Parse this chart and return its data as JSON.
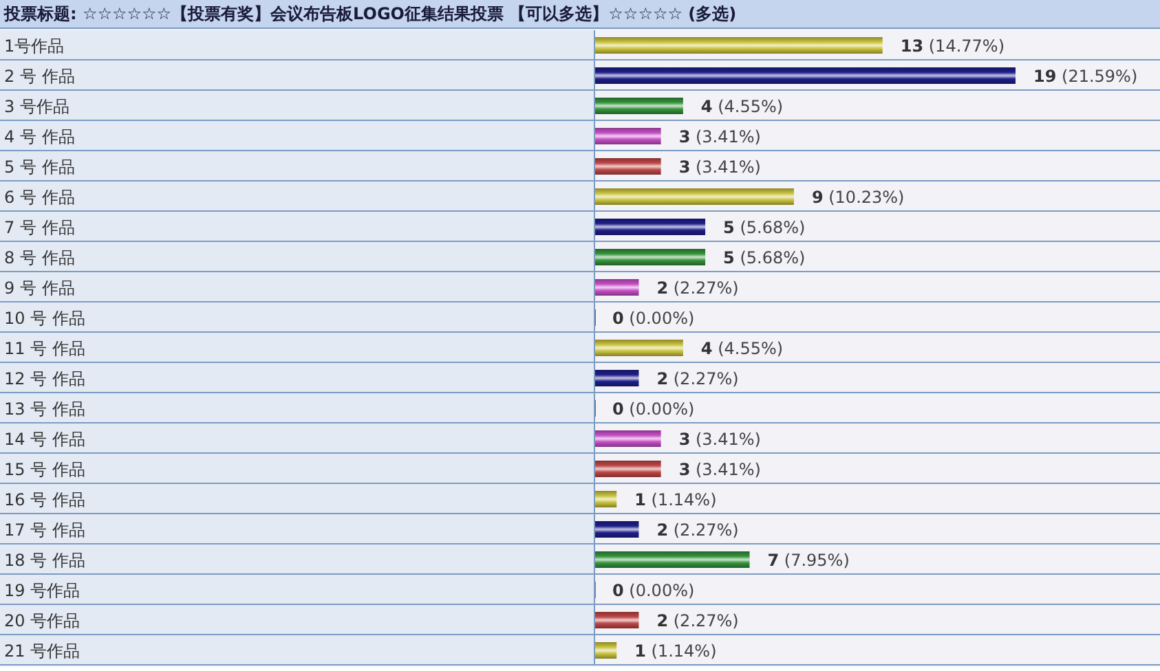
{
  "chart_data": {
    "type": "bar",
    "orientation": "horizontal",
    "title": "投票标题: ☆☆☆☆☆☆【投票有奖】会议布告板LOGO征集结果投票 【可以多选】☆☆☆☆☆ (多选)",
    "categories": [
      "1号作品",
      "2 号 作品",
      "3 号作品",
      "4 号 作品",
      "5 号 作品",
      "6 号 作品",
      "7 号 作品",
      "8 号 作品",
      "9 号 作品",
      "10 号 作品",
      "11 号 作品",
      "12 号 作品",
      "13 号 作品",
      "14 号 作品",
      "15 号 作品",
      "16 号 作品",
      "17 号 作品",
      "18 号 作品",
      "19 号作品",
      "20 号作品",
      "21 号作品"
    ],
    "values": [
      13,
      19,
      4,
      3,
      3,
      9,
      5,
      5,
      2,
      0,
      4,
      2,
      0,
      3,
      3,
      1,
      2,
      7,
      0,
      2,
      1
    ],
    "colors": [
      "#c9c23c",
      "#1e1e8a",
      "#34923a",
      "#c64ec6",
      "#bf4646",
      "#c9c23c",
      "#1e1e8a",
      "#34923a",
      "#c64ec6",
      "#bf4646",
      "#c9c23c",
      "#1e1e8a",
      "#34923a",
      "#c64ec6",
      "#bf4646",
      "#c9c23c",
      "#1e1e8a",
      "#34923a",
      "#c64ec6",
      "#bf4646",
      "#c9c23c"
    ],
    "value_labels": [
      "13 (14.77%)",
      "19 (21.59%)",
      "4 (4.55%)",
      "3 (3.41%)",
      "3 (3.41%)",
      "9 (10.23%)",
      "5 (5.68%)",
      "5 (5.68%)",
      "2 (2.27%)",
      "0 (0.00%)",
      "4 (4.55%)",
      "2 (2.27%)",
      "0 (0.00%)",
      "3 (3.41%)",
      "3 (3.41%)",
      "1 (1.14%)",
      "2 (2.27%)",
      "7 (7.95%)",
      "0 (0.00%)",
      "2 (2.27%)",
      "1 (1.14%)"
    ],
    "grid": "y",
    "tick_labels": "y"
  }
}
